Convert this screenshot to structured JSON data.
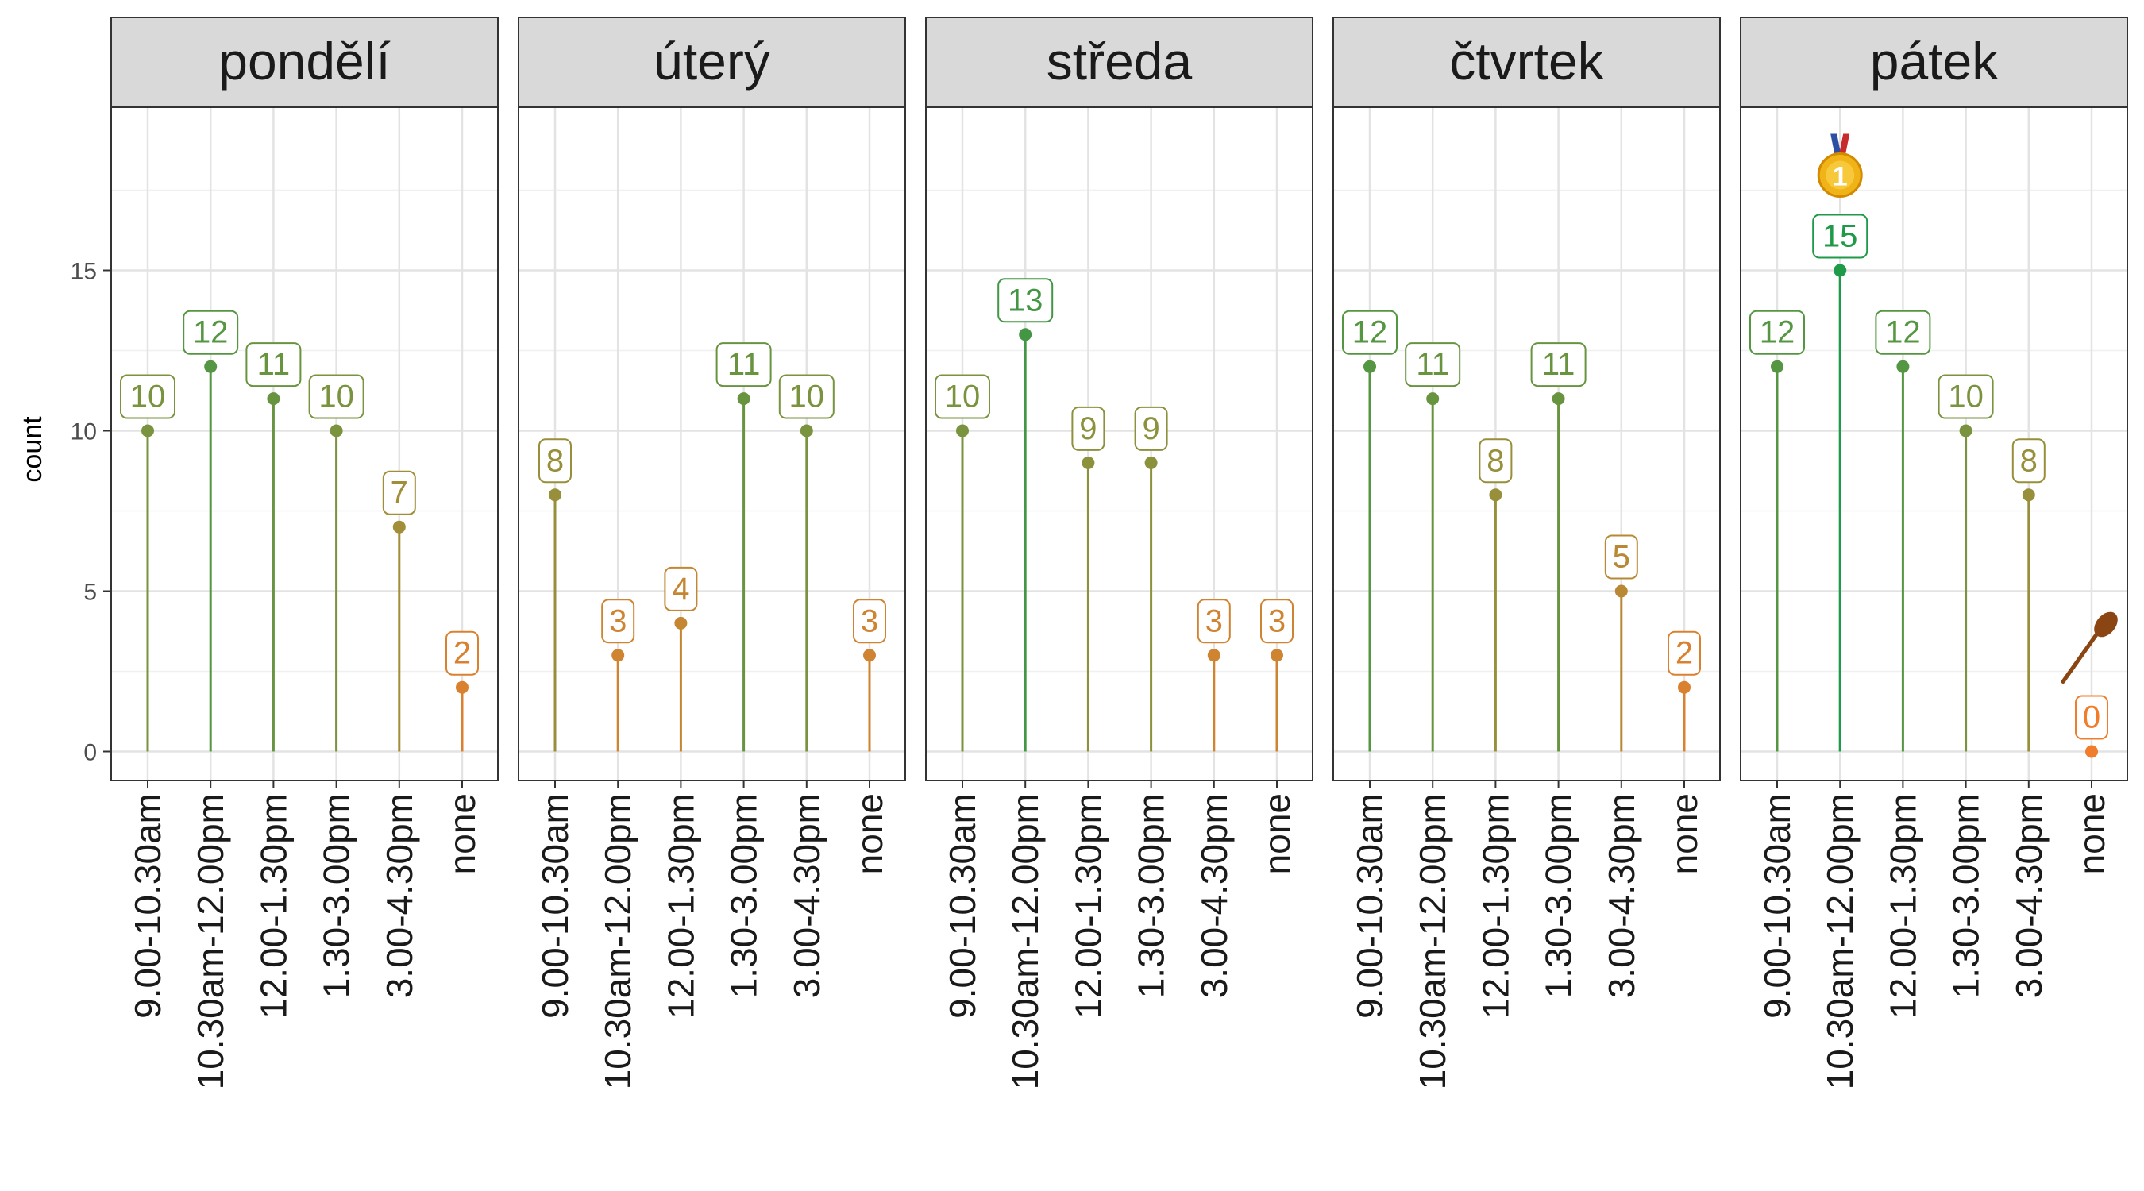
{
  "chart_data": {
    "type": "lollipop",
    "ylabel": "count",
    "ylim": [
      0,
      20
    ],
    "yticks": [
      0,
      5,
      10,
      15
    ],
    "categories": [
      "9.00-10.30am",
      "10.30am-12.00pm",
      "12.00-1.30pm",
      "1.30-3.00pm",
      "3.00-4.30pm",
      "none"
    ],
    "grid": true,
    "panels": [
      {
        "name": "pondělí",
        "values": [
          10,
          12,
          11,
          10,
          7,
          2
        ]
      },
      {
        "name": "úterý",
        "values": [
          8,
          3,
          4,
          11,
          10,
          3
        ]
      },
      {
        "name": "středa",
        "values": [
          10,
          13,
          9,
          9,
          3,
          3
        ]
      },
      {
        "name": "čtvrtek",
        "values": [
          12,
          11,
          8,
          11,
          5,
          2
        ]
      },
      {
        "name": "pátek",
        "values": [
          12,
          15,
          12,
          10,
          8,
          0
        ]
      }
    ],
    "color_scale": {
      "low": "#f07d2c",
      "high": "#1f9a48",
      "min": 0,
      "max": 15
    },
    "annotations": [
      {
        "panel": "pátek",
        "category": "10.30am-12.00pm",
        "icon": "gold-medal-icon"
      },
      {
        "panel": "pátek",
        "category": "none",
        "icon": "wooden-spoon-icon"
      }
    ]
  }
}
